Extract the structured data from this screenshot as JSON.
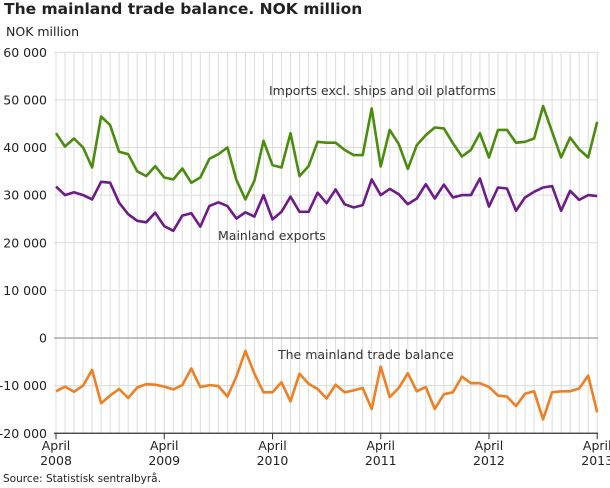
{
  "chart_data": {
    "type": "line",
    "title": "The mainland trade balance. NOK million",
    "ylabel": "NOK million",
    "ylim": [
      -20000,
      60000
    ],
    "yticks": [
      "60 000",
      "50 000",
      "40 000",
      "30 000",
      "20 000",
      "10 000",
      "0",
      "-10 000",
      "-20 000"
    ],
    "ytick_values": [
      60000,
      50000,
      40000,
      30000,
      20000,
      10000,
      0,
      -10000,
      -20000
    ],
    "x_start": "2008-04",
    "x_end": "2013-04",
    "xticks": [
      {
        "month": "April",
        "year": "2008",
        "index": 0
      },
      {
        "month": "April",
        "year": "2009",
        "index": 12
      },
      {
        "month": "April",
        "year": "2010",
        "index": 24
      },
      {
        "month": "April",
        "year": "2011",
        "index": 36
      },
      {
        "month": "April",
        "year": "2012",
        "index": 48
      },
      {
        "month": "April",
        "year": "2013",
        "index": 60
      }
    ],
    "grid": true,
    "series": [
      {
        "name": "Imports excl. ships and oil platforms",
        "color": "#4a8c0c",
        "values": [
          43000,
          40200,
          41900,
          40000,
          35800,
          46500,
          44700,
          39100,
          38600,
          35000,
          34000,
          36100,
          33700,
          33300,
          35600,
          32600,
          33700,
          37600,
          38600,
          40000,
          33200,
          29100,
          33000,
          41400,
          36300,
          35800,
          43000,
          34000,
          36100,
          41200,
          41000,
          41000,
          39500,
          38400,
          38400,
          48200,
          36000,
          43700,
          40700,
          35500,
          40500,
          42600,
          44200,
          44000,
          40900,
          38100,
          39500,
          43000,
          37900,
          43700,
          43700,
          41000,
          41200,
          41900,
          48700,
          43300,
          37900,
          42100,
          39600,
          37900,
          45400
        ]
      },
      {
        "name": "Mainland exports",
        "color": "#6f1a8a",
        "values": [
          31800,
          30000,
          30600,
          30000,
          29100,
          32800,
          32600,
          28400,
          26000,
          24600,
          24300,
          26300,
          23500,
          22500,
          25700,
          26200,
          23400,
          27700,
          28500,
          27700,
          25100,
          26400,
          25500,
          30000,
          24900,
          26500,
          29700,
          26500,
          26500,
          30500,
          28300,
          31200,
          28100,
          27400,
          27900,
          33300,
          30000,
          31300,
          30200,
          28100,
          29300,
          32300,
          29300,
          32200,
          29500,
          30000,
          30000,
          33500,
          27600,
          31600,
          31400,
          26700,
          29500,
          30700,
          31600,
          31900,
          26700,
          30900,
          29000,
          30000,
          29800
        ]
      },
      {
        "name": "The mainland trade balance",
        "color": "#f07f22",
        "values": [
          -11200,
          -10200,
          -11300,
          -10000,
          -6700,
          -13700,
          -12100,
          -10700,
          -12600,
          -10400,
          -9700,
          -9800,
          -10200,
          -10800,
          -9900,
          -6400,
          -10300,
          -9900,
          -10100,
          -12300,
          -8100,
          -2700,
          -7500,
          -11400,
          -11400,
          -9300,
          -13300,
          -7500,
          -9600,
          -10700,
          -12700,
          -9800,
          -11400,
          -11000,
          -10500,
          -14900,
          -6000,
          -12400,
          -10500,
          -7400,
          -11200,
          -10300,
          -14900,
          -11800,
          -11400,
          -8100,
          -9500,
          -9500,
          -10300,
          -12100,
          -12300,
          -14300,
          -11700,
          -11200,
          -17100,
          -11400,
          -11200,
          -11200,
          -10600,
          -7900,
          -15600
        ]
      }
    ],
    "source": "Source: Statistisk sentralbyrå."
  }
}
